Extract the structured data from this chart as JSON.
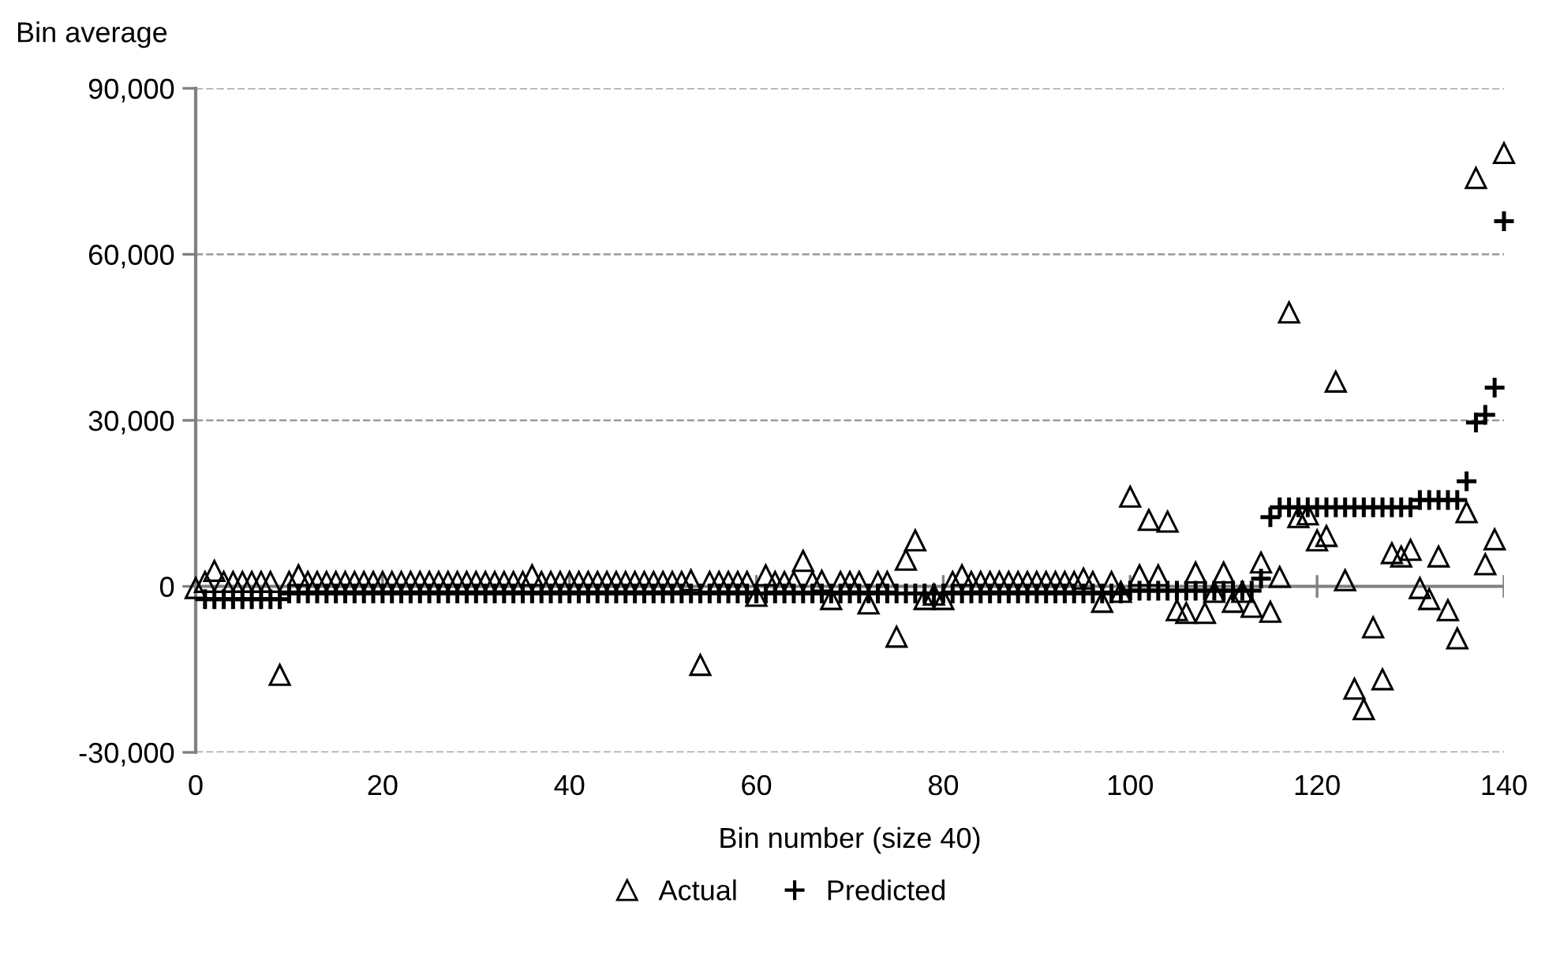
{
  "chart_data": {
    "type": "scatter",
    "xlabel": "Bin number (size 40)",
    "ylabel": "Bin average",
    "x": [
      0,
      1,
      2,
      3,
      4,
      5,
      6,
      7,
      8,
      9,
      10,
      11,
      12,
      13,
      14,
      15,
      16,
      17,
      18,
      19,
      20,
      21,
      22,
      23,
      24,
      25,
      26,
      27,
      28,
      29,
      30,
      31,
      32,
      33,
      34,
      35,
      36,
      37,
      38,
      39,
      40,
      41,
      42,
      43,
      44,
      45,
      46,
      47,
      48,
      49,
      50,
      51,
      52,
      53,
      54,
      55,
      56,
      57,
      58,
      59,
      60,
      61,
      62,
      63,
      64,
      65,
      66,
      67,
      68,
      69,
      70,
      71,
      72,
      73,
      74,
      75,
      76,
      77,
      78,
      79,
      80,
      81,
      82,
      83,
      84,
      85,
      86,
      87,
      88,
      89,
      90,
      91,
      92,
      93,
      94,
      95,
      96,
      97,
      98,
      99,
      100,
      101,
      102,
      103,
      104,
      105,
      106,
      107,
      108,
      109,
      110,
      111,
      112,
      113,
      114,
      115,
      116,
      117,
      118,
      119,
      120,
      121,
      122,
      123,
      124,
      125,
      126,
      127,
      128,
      129,
      130,
      131,
      132,
      133,
      134,
      135,
      136,
      137,
      138,
      139,
      140
    ],
    "series": [
      {
        "name": "Actual",
        "color": "#000000",
        "marker": "triangle",
        "values": [
          -300,
          800,
          2800,
          800,
          800,
          800,
          800,
          800,
          800,
          -16000,
          800,
          2000,
          800,
          800,
          800,
          800,
          800,
          800,
          800,
          800,
          800,
          800,
          800,
          800,
          800,
          800,
          800,
          800,
          800,
          800,
          800,
          800,
          800,
          800,
          800,
          800,
          2000,
          800,
          800,
          800,
          800,
          800,
          800,
          800,
          800,
          800,
          800,
          800,
          800,
          800,
          800,
          800,
          800,
          1100,
          -14200,
          800,
          800,
          800,
          800,
          800,
          -1700,
          2000,
          800,
          800,
          800,
          4600,
          800,
          1000,
          -2300,
          800,
          800,
          800,
          -3100,
          800,
          800,
          -9100,
          4800,
          8300,
          -2300,
          -1500,
          -2300,
          800,
          2000,
          800,
          800,
          800,
          800,
          800,
          800,
          800,
          800,
          800,
          800,
          800,
          800,
          1400,
          800,
          -2800,
          800,
          -1000,
          16200,
          2000,
          12000,
          2000,
          11700,
          -4300,
          -4800,
          2500,
          -4800,
          -1000,
          2500,
          -2800,
          -1000,
          -3700,
          4300,
          -4600,
          1700,
          49500,
          12500,
          13000,
          8300,
          9100,
          37000,
          1100,
          -18500,
          -22200,
          -7400,
          -16800,
          6000,
          5400,
          6600,
          -300,
          -2300,
          5400,
          -4300,
          -9400,
          13400,
          73800,
          4000,
          8500,
          78300
        ]
      },
      {
        "name": "Predicted",
        "color": "#000000",
        "marker": "cross",
        "values": [
          null,
          -2300,
          -2300,
          -2300,
          -2300,
          -2300,
          -2300,
          -2300,
          -2300,
          -2300,
          -1300,
          -1300,
          -1300,
          -1300,
          -1300,
          -1300,
          -1300,
          -1300,
          -1300,
          -1300,
          -1300,
          -1300,
          -1300,
          -1300,
          -1300,
          -1300,
          -1300,
          -1300,
          -1300,
          -1300,
          -1300,
          -1300,
          -1300,
          -1300,
          -1300,
          -1300,
          -1300,
          -1300,
          -1300,
          -1300,
          -1300,
          -1300,
          -1300,
          -1300,
          -1300,
          -1300,
          -1300,
          -1300,
          -1300,
          -1300,
          -1300,
          -1300,
          -1300,
          -1300,
          -1300,
          -1300,
          -1300,
          -1300,
          -1300,
          -1300,
          -1300,
          -1300,
          -1300,
          -1300,
          -1300,
          -1300,
          -1300,
          -1300,
          -1300,
          -1300,
          -1300,
          -1300,
          -1300,
          -1300,
          -1300,
          -1300,
          -1300,
          -1300,
          -1300,
          -1300,
          -1300,
          -1300,
          -1300,
          -1300,
          -1300,
          -1300,
          -1300,
          -1300,
          -1300,
          -1300,
          -1300,
          -1300,
          -1300,
          -1300,
          -1300,
          -1300,
          -1300,
          -1300,
          -1300,
          -1300,
          -800,
          -800,
          -800,
          -800,
          -800,
          -800,
          -800,
          -800,
          -800,
          -800,
          -800,
          -800,
          -800,
          -800,
          1400,
          12500,
          14300,
          14300,
          14300,
          14300,
          14300,
          14300,
          14300,
          14300,
          14300,
          14300,
          14300,
          14300,
          14300,
          14300,
          14300,
          15600,
          15600,
          15600,
          15600,
          15600,
          19000,
          29600,
          31000,
          35900,
          66000
        ]
      }
    ],
    "xlim": [
      0,
      140
    ],
    "xticks": [
      0,
      20,
      40,
      60,
      80,
      100,
      120,
      140
    ],
    "ylim": [
      -30000,
      90000
    ],
    "yticks": [
      {
        "value": -30000,
        "label": "-30,000"
      },
      0,
      {
        "value": 30000,
        "label": "30,000"
      },
      {
        "value": 60000,
        "label": "60,000"
      },
      {
        "value": 90000,
        "label": "90,000"
      }
    ],
    "grid": "y",
    "legend": "bottom",
    "ref_lines": [
      {
        "axis": "y",
        "value": 0,
        "label": null,
        "color": "#808080",
        "line_style": "solid"
      }
    ]
  }
}
